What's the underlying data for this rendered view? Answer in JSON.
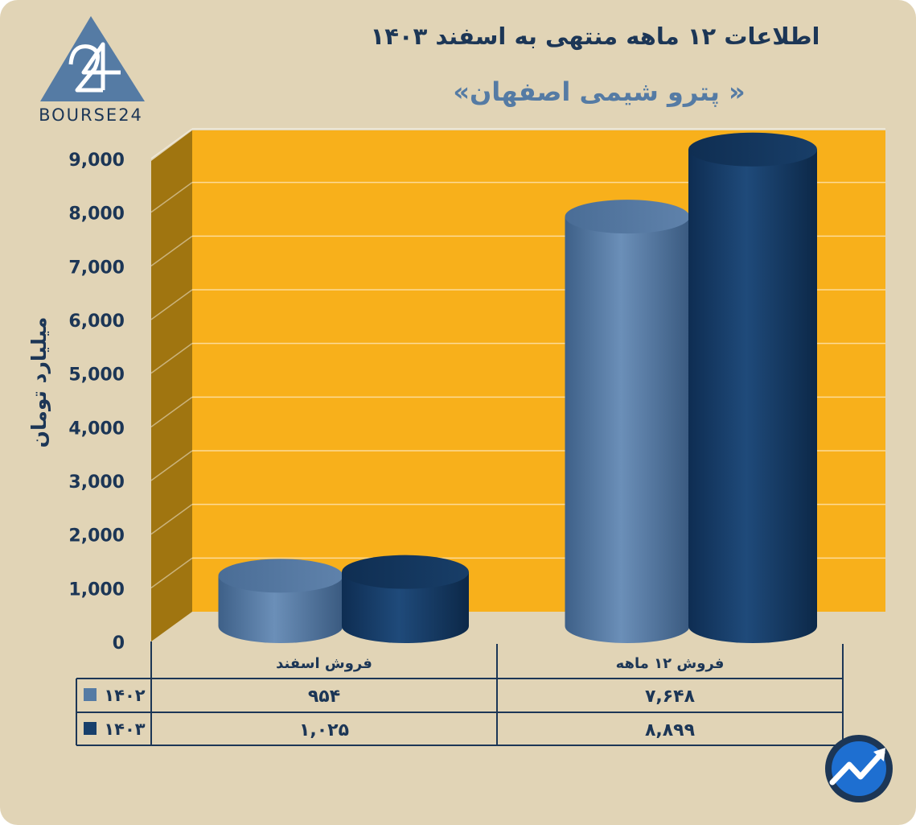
{
  "logo": {
    "text": "BOURSE24",
    "mark": "24"
  },
  "header": {
    "title": "اطلاعات ۱۲ ماهه منتهی به اسفند ۱۴۰۳",
    "subtitle": "« پترو شیمی اصفهان»"
  },
  "colors": {
    "background": "#e1d4b6",
    "plot_back": "#f8b01b",
    "plot_side": "#a07510",
    "series_1402": "#557ba4",
    "series_1403": "#173f6b",
    "text": "#1c3656"
  },
  "chart_data": {
    "type": "bar",
    "ylabel": "میلیارد تومان",
    "ylim": [
      0,
      9000
    ],
    "yticks": [
      {
        "value": 0,
        "label": "0"
      },
      {
        "value": 1000,
        "label": "1,000"
      },
      {
        "value": 2000,
        "label": "2,000"
      },
      {
        "value": 3000,
        "label": "3,000"
      },
      {
        "value": 4000,
        "label": "4,000"
      },
      {
        "value": 5000,
        "label": "5,000"
      },
      {
        "value": 6000,
        "label": "6,000"
      },
      {
        "value": 7000,
        "label": "7,000"
      },
      {
        "value": 8000,
        "label": "8,000"
      },
      {
        "value": 9000,
        "label": "9,000"
      }
    ],
    "categories": [
      "فروش اسفند",
      "فروش ۱۲ ماهه"
    ],
    "series": [
      {
        "name": "۱۴۰۲",
        "color": "#557ba4",
        "values": [
          954,
          7648
        ],
        "labels": [
          "۹۵۴",
          "۷,۶۴۸"
        ]
      },
      {
        "name": "۱۴۰۳",
        "color": "#173f6b",
        "values": [
          1025,
          8899
        ],
        "labels": [
          "۱,۰۲۵",
          "۸,۸۹۹"
        ]
      }
    ],
    "grid": true,
    "legend": "table-left"
  },
  "watermark_icon": "trend-arrow-icon"
}
